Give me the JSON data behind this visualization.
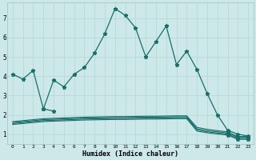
{
  "xlabel": "Humidex (Indice chaleur)",
  "bg_color": "#cce8e8",
  "grid_color": "#b8d8d8",
  "line_color": "#1a6e6a",
  "ylim": [
    0.5,
    7.8
  ],
  "xlim": [
    -0.5,
    23.5
  ],
  "yticks": [
    1,
    2,
    3,
    4,
    5,
    6,
    7
  ],
  "x": [
    0,
    1,
    2,
    3,
    4,
    5,
    6,
    7,
    8,
    9,
    10,
    11,
    12,
    13,
    14,
    15,
    16,
    17,
    18,
    19,
    20,
    21,
    22,
    23
  ],
  "main_line": [
    4.1,
    3.85,
    4.3,
    2.3,
    3.8,
    3.45,
    4.1,
    4.45,
    5.2,
    6.2,
    7.5,
    7.15,
    6.5,
    5.0,
    5.8,
    6.6,
    4.6,
    5.3,
    4.35,
    3.1,
    2.0,
    1.2,
    1.0,
    0.9
  ],
  "flat1": [
    1.65,
    1.7,
    1.75,
    1.8,
    1.82,
    1.84,
    1.86,
    1.88,
    1.89,
    1.9,
    1.91,
    1.91,
    1.92,
    1.93,
    1.93,
    1.94,
    1.95,
    1.95,
    1.35,
    1.25,
    1.18,
    1.12,
    0.88,
    0.88
  ],
  "flat2": [
    1.6,
    1.65,
    1.7,
    1.75,
    1.77,
    1.79,
    1.81,
    1.83,
    1.84,
    1.85,
    1.86,
    1.86,
    1.87,
    1.88,
    1.88,
    1.89,
    1.9,
    1.9,
    1.28,
    1.18,
    1.12,
    1.06,
    0.83,
    0.83
  ],
  "flat3": [
    1.55,
    1.6,
    1.65,
    1.7,
    1.72,
    1.74,
    1.76,
    1.78,
    1.79,
    1.8,
    1.81,
    1.81,
    1.82,
    1.83,
    1.83,
    1.84,
    1.85,
    1.85,
    1.22,
    1.12,
    1.06,
    1.0,
    0.78,
    0.78
  ],
  "flat4": [
    1.5,
    1.55,
    1.6,
    1.65,
    1.67,
    1.69,
    1.71,
    1.73,
    1.74,
    1.75,
    1.76,
    1.76,
    1.77,
    1.78,
    1.78,
    1.79,
    1.8,
    1.8,
    1.16,
    1.07,
    1.01,
    0.95,
    0.73,
    0.73
  ],
  "short_line_x": [
    3,
    4
  ],
  "short_line_y": [
    2.3,
    2.2
  ]
}
